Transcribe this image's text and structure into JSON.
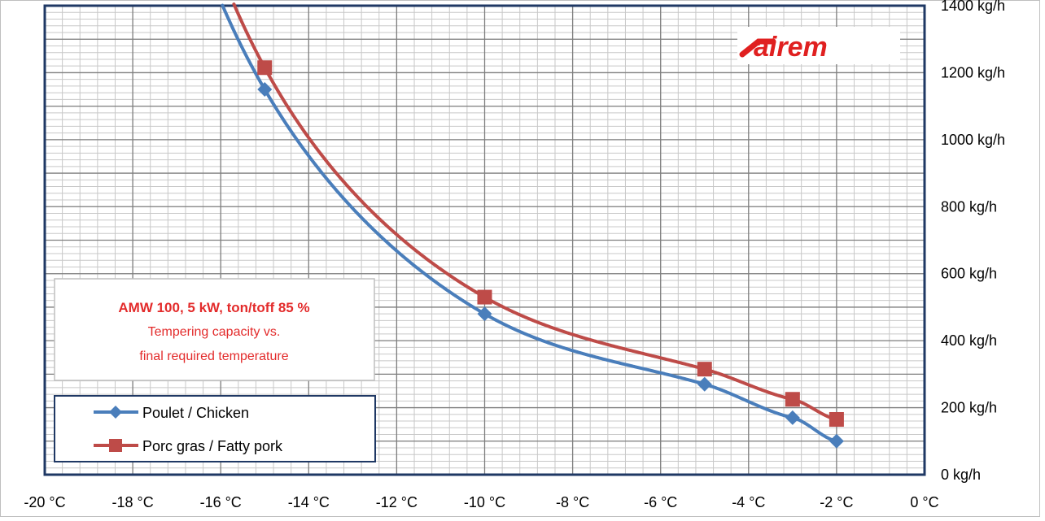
{
  "chart_data": {
    "type": "line",
    "title": "AMW 100, 5 kW, ton/toff 85 %",
    "subtitle": [
      "Tempering capacity vs.",
      "final required temperature"
    ],
    "brand_logo": "sairem",
    "x_ticks": [
      "-20 °C",
      "-18 °C",
      "-16 °C",
      "-14 °C",
      "-12 °C",
      "-10 °C",
      "-8 °C",
      "-6 °C",
      "-4 °C",
      "-2 °C",
      "0 °C"
    ],
    "y_ticks": [
      "0 kg/h",
      "200 kg/h",
      "400 kg/h",
      "600 kg/h",
      "800 kg/h",
      "1000 kg/h",
      "1200 kg/h",
      "1400 kg/h"
    ],
    "xlim": [
      -20,
      0
    ],
    "ylim": [
      0,
      1400
    ],
    "grid": true,
    "legend_position": "bottom-left",
    "series": [
      {
        "name": "Poulet / Chicken",
        "color": "#4a7ebb",
        "marker": "diamond",
        "x": [
          -15,
          -10,
          -5,
          -3,
          -2
        ],
        "y": [
          1150,
          480,
          270,
          170,
          100
        ]
      },
      {
        "name": "Porc gras / Fatty pork",
        "color": "#be4b48",
        "marker": "square",
        "x": [
          -15,
          -10,
          -5,
          -3,
          -2
        ],
        "y": [
          1215,
          530,
          315,
          225,
          165
        ]
      }
    ]
  }
}
